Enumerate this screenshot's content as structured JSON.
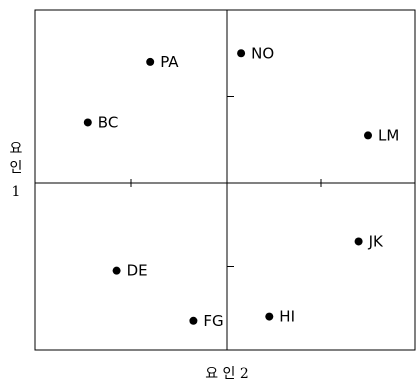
{
  "chart_data": {
    "type": "scatter",
    "xlabel": "요 인 2",
    "ylabel_lines": [
      "요",
      "인",
      "1"
    ],
    "xlim": [
      -4,
      4
    ],
    "ylim": [
      -4,
      4
    ],
    "x_ticks": [
      -2,
      0,
      2
    ],
    "y_ticks": [
      -2,
      0,
      2
    ],
    "grid": false,
    "points": [
      {
        "label": "PA",
        "x": -1.6,
        "y": 2.8
      },
      {
        "label": "NO",
        "x": 0.3,
        "y": 3.0
      },
      {
        "label": "BC",
        "x": -2.9,
        "y": 1.4
      },
      {
        "label": "LM",
        "x": 3.0,
        "y": 1.1
      },
      {
        "label": "JK",
        "x": 2.8,
        "y": -1.4
      },
      {
        "label": "DE",
        "x": -2.3,
        "y": -2.1
      },
      {
        "label": "FG",
        "x": -0.7,
        "y": -3.3
      },
      {
        "label": "HI",
        "x": 0.9,
        "y": -3.2
      }
    ]
  }
}
